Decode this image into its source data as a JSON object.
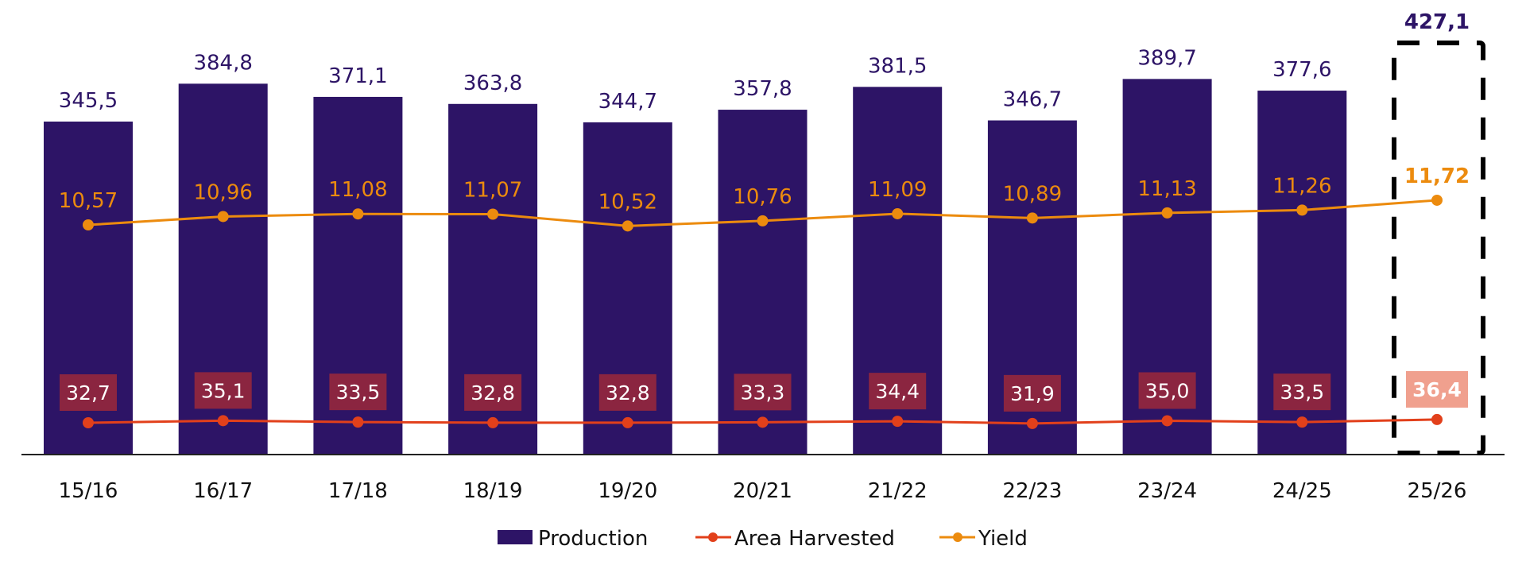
{
  "chart_data": {
    "type": "bar",
    "title": "",
    "xlabel": "",
    "ylabel": "",
    "categories": [
      "15/16",
      "16/17",
      "17/18",
      "18/19",
      "19/20",
      "20/21",
      "21/22",
      "22/23",
      "23/24",
      "24/25",
      "25/26"
    ],
    "series": [
      {
        "name": "Production",
        "type": "bar",
        "color": "#2D1466",
        "values": [
          345.5,
          384.8,
          371.1,
          363.8,
          344.7,
          357.8,
          381.5,
          346.7,
          389.7,
          377.6,
          427.1
        ],
        "labels": [
          "345,5",
          "384,8",
          "371,1",
          "363,8",
          "344,7",
          "357,8",
          "381,5",
          "346,7",
          "389,7",
          "377,6",
          "427,1"
        ]
      },
      {
        "name": "Area Harvested",
        "type": "line",
        "color": "#E2401B",
        "label_bg": "#8B2540",
        "label_bg_highlight": "#F0A08E",
        "values": [
          32.7,
          35.1,
          33.5,
          32.8,
          32.8,
          33.3,
          34.4,
          31.9,
          35.0,
          33.5,
          36.4
        ],
        "labels": [
          "32,7",
          "35,1",
          "33,5",
          "32,8",
          "32,8",
          "33,3",
          "34,4",
          "31,9",
          "35,0",
          "33,5",
          "36,4"
        ]
      },
      {
        "name": "Yield",
        "type": "line",
        "color": "#EC8B0E",
        "values": [
          10.57,
          10.96,
          11.08,
          11.07,
          10.52,
          10.76,
          11.09,
          10.89,
          11.13,
          11.26,
          11.72
        ],
        "labels": [
          "10,57",
          "10,96",
          "11,08",
          "11,07",
          "10,52",
          "10,76",
          "11,09",
          "10,89",
          "11,13",
          "11,26",
          "11,72"
        ]
      }
    ],
    "highlight": {
      "category": "25/26",
      "style": "dashed-box",
      "bar_hidden": true
    },
    "grid": false,
    "legend": {
      "position": "bottom",
      "entries": [
        "Production",
        "Area Harvested",
        "Yield"
      ]
    }
  }
}
